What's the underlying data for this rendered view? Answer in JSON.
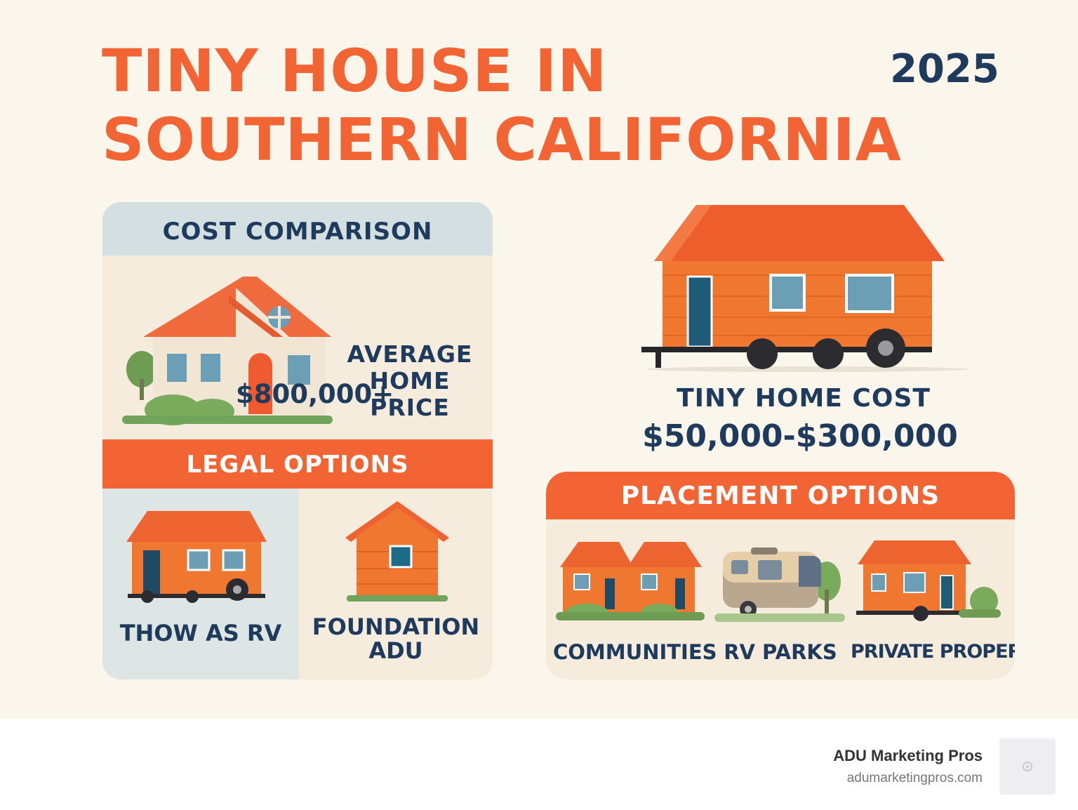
{
  "header": {
    "title_line1": "TINY HOUSE IN",
    "title_line2": "SOUTHERN CALIFORNIA",
    "year": "2025"
  },
  "cost_comparison": {
    "heading": "COST COMPARISON",
    "average_label_line1": "AVERAGE",
    "average_label_line2": "HOME",
    "average_label_line3": "PRICE",
    "average_price": "$800,000+"
  },
  "tiny_home": {
    "cost_label": "TINY HOME COST",
    "cost_range": "$50,000-$300,000"
  },
  "legal_options": {
    "heading": "LEGAL OPTIONS",
    "options": [
      {
        "label": "THOW AS RV"
      },
      {
        "label_line1": "FOUNDATION",
        "label_line2": "ADU"
      }
    ]
  },
  "placement_options": {
    "heading": "PLACEMENT OPTIONS",
    "options": [
      {
        "label": "COMMUNITIES"
      },
      {
        "label": "RV PARKS"
      },
      {
        "label": "PRIVATE PROPERTY"
      }
    ]
  },
  "footer": {
    "brand": "ADU Marketing Pros",
    "url": "adumarketingpros.com"
  },
  "colors": {
    "accent": "#f26434",
    "navy": "#1e3a5c",
    "background": "#fbf6ec"
  }
}
